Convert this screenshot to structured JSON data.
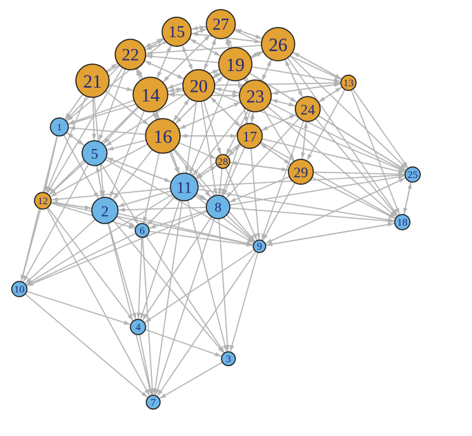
{
  "graph": {
    "colors": {
      "edge": "#b3b3b3",
      "group_a": "#e3a234",
      "group_b": "#6cb5e6",
      "node_outline": "#1a1a1a",
      "label": "#1f2a7a"
    },
    "nodes": [
      {
        "id": "1",
        "group": "b"
      },
      {
        "id": "2",
        "group": "b"
      },
      {
        "id": "3",
        "group": "b"
      },
      {
        "id": "4",
        "group": "b"
      },
      {
        "id": "5",
        "group": "b"
      },
      {
        "id": "6",
        "group": "b"
      },
      {
        "id": "7",
        "group": "b"
      },
      {
        "id": "8",
        "group": "b"
      },
      {
        "id": "9",
        "group": "b"
      },
      {
        "id": "10",
        "group": "b"
      },
      {
        "id": "11",
        "group": "b"
      },
      {
        "id": "12",
        "group": "a"
      },
      {
        "id": "13",
        "group": "a"
      },
      {
        "id": "14",
        "group": "a"
      },
      {
        "id": "15",
        "group": "a"
      },
      {
        "id": "16",
        "group": "a"
      },
      {
        "id": "17",
        "group": "a"
      },
      {
        "id": "18",
        "group": "b"
      },
      {
        "id": "19",
        "group": "a"
      },
      {
        "id": "20",
        "group": "a"
      },
      {
        "id": "21",
        "group": "a"
      },
      {
        "id": "22",
        "group": "a"
      },
      {
        "id": "23",
        "group": "a"
      },
      {
        "id": "24",
        "group": "a"
      },
      {
        "id": "25",
        "group": "b"
      },
      {
        "id": "26",
        "group": "a"
      },
      {
        "id": "27",
        "group": "a"
      },
      {
        "id": "28",
        "group": "a"
      },
      {
        "id": "29",
        "group": "a"
      }
    ],
    "edges": [
      [
        "2",
        "7"
      ],
      [
        "6",
        "7"
      ],
      [
        "4",
        "7"
      ],
      [
        "11",
        "7"
      ],
      [
        "8",
        "7"
      ],
      [
        "9",
        "7"
      ],
      [
        "3",
        "7"
      ],
      [
        "2",
        "3"
      ],
      [
        "6",
        "3"
      ],
      [
        "11",
        "3"
      ],
      [
        "8",
        "3"
      ],
      [
        "9",
        "3"
      ],
      [
        "4",
        "3"
      ],
      [
        "2",
        "4"
      ],
      [
        "6",
        "4"
      ],
      [
        "10",
        "4"
      ],
      [
        "11",
        "4"
      ],
      [
        "8",
        "4"
      ],
      [
        "12",
        "4"
      ],
      [
        "9",
        "4"
      ],
      [
        "2",
        "10"
      ],
      [
        "12",
        "10"
      ],
      [
        "1",
        "10"
      ],
      [
        "5",
        "10"
      ],
      [
        "11",
        "10"
      ],
      [
        "6",
        "10"
      ],
      [
        "8",
        "10"
      ],
      [
        "2",
        "9"
      ],
      [
        "11",
        "9"
      ],
      [
        "8",
        "9"
      ],
      [
        "6",
        "9"
      ],
      [
        "28",
        "9"
      ],
      [
        "29",
        "9"
      ],
      [
        "17",
        "9"
      ],
      [
        "16",
        "9"
      ],
      [
        "24",
        "9"
      ],
      [
        "12",
        "9"
      ],
      [
        "5",
        "9"
      ],
      [
        "1",
        "12"
      ],
      [
        "5",
        "12"
      ],
      [
        "2",
        "12"
      ],
      [
        "21",
        "12"
      ],
      [
        "22",
        "12"
      ],
      [
        "14",
        "12"
      ],
      [
        "16",
        "12"
      ],
      [
        "11",
        "12"
      ],
      [
        "2",
        "6"
      ],
      [
        "11",
        "6"
      ],
      [
        "8",
        "6"
      ],
      [
        "5",
        "6"
      ],
      [
        "16",
        "6"
      ],
      [
        "12",
        "6"
      ],
      [
        "1",
        "5"
      ],
      [
        "21",
        "5"
      ],
      [
        "14",
        "5"
      ],
      [
        "16",
        "5"
      ],
      [
        "22",
        "5"
      ],
      [
        "11",
        "5"
      ],
      [
        "2",
        "5"
      ],
      [
        "20",
        "5"
      ],
      [
        "21",
        "1"
      ],
      [
        "14",
        "1"
      ],
      [
        "22",
        "1"
      ],
      [
        "16",
        "1"
      ],
      [
        "5",
        "1"
      ],
      [
        "20",
        "1"
      ],
      [
        "15",
        "1"
      ],
      [
        "5",
        "2"
      ],
      [
        "11",
        "2"
      ],
      [
        "16",
        "2"
      ],
      [
        "14",
        "2"
      ],
      [
        "1",
        "2"
      ],
      [
        "8",
        "2"
      ],
      [
        "12",
        "2"
      ],
      [
        "21",
        "2"
      ],
      [
        "16",
        "11"
      ],
      [
        "14",
        "11"
      ],
      [
        "20",
        "11"
      ],
      [
        "17",
        "11"
      ],
      [
        "28",
        "11"
      ],
      [
        "8",
        "11"
      ],
      [
        "23",
        "11"
      ],
      [
        "19",
        "11"
      ],
      [
        "5",
        "11"
      ],
      [
        "11",
        "8"
      ],
      [
        "17",
        "8"
      ],
      [
        "28",
        "8"
      ],
      [
        "29",
        "8"
      ],
      [
        "23",
        "8"
      ],
      [
        "16",
        "8"
      ],
      [
        "20",
        "8"
      ],
      [
        "24",
        "8"
      ],
      [
        "21",
        "14"
      ],
      [
        "22",
        "14"
      ],
      [
        "15",
        "14"
      ],
      [
        "20",
        "14"
      ],
      [
        "16",
        "14"
      ],
      [
        "19",
        "14"
      ],
      [
        "27",
        "14"
      ],
      [
        "23",
        "14"
      ],
      [
        "21",
        "22"
      ],
      [
        "15",
        "22"
      ],
      [
        "27",
        "22"
      ],
      [
        "14",
        "22"
      ],
      [
        "20",
        "22"
      ],
      [
        "16",
        "22"
      ],
      [
        "19",
        "22"
      ],
      [
        "26",
        "22"
      ],
      [
        "22",
        "15"
      ],
      [
        "27",
        "15"
      ],
      [
        "19",
        "15"
      ],
      [
        "20",
        "15"
      ],
      [
        "14",
        "15"
      ],
      [
        "26",
        "15"
      ],
      [
        "21",
        "15"
      ],
      [
        "15",
        "27"
      ],
      [
        "26",
        "27"
      ],
      [
        "19",
        "27"
      ],
      [
        "20",
        "27"
      ],
      [
        "22",
        "27"
      ],
      [
        "23",
        "27"
      ],
      [
        "14",
        "27"
      ],
      [
        "27",
        "26"
      ],
      [
        "19",
        "26"
      ],
      [
        "23",
        "26"
      ],
      [
        "13",
        "26"
      ],
      [
        "24",
        "26"
      ],
      [
        "20",
        "26"
      ],
      [
        "15",
        "26"
      ],
      [
        "26",
        "19"
      ],
      [
        "27",
        "19"
      ],
      [
        "20",
        "19"
      ],
      [
        "23",
        "19"
      ],
      [
        "14",
        "19"
      ],
      [
        "15",
        "19"
      ],
      [
        "17",
        "19"
      ],
      [
        "16",
        "19"
      ],
      [
        "19",
        "20"
      ],
      [
        "14",
        "20"
      ],
      [
        "16",
        "20"
      ],
      [
        "23",
        "20"
      ],
      [
        "22",
        "20"
      ],
      [
        "27",
        "20"
      ],
      [
        "17",
        "20"
      ],
      [
        "15",
        "20"
      ],
      [
        "19",
        "23"
      ],
      [
        "20",
        "23"
      ],
      [
        "26",
        "23"
      ],
      [
        "24",
        "23"
      ],
      [
        "17",
        "23"
      ],
      [
        "16",
        "23"
      ],
      [
        "13",
        "23"
      ],
      [
        "14",
        "23"
      ],
      [
        "14",
        "16"
      ],
      [
        "20",
        "16"
      ],
      [
        "21",
        "16"
      ],
      [
        "23",
        "16"
      ],
      [
        "17",
        "16"
      ],
      [
        "22",
        "16"
      ],
      [
        "19",
        "16"
      ],
      [
        "23",
        "17"
      ],
      [
        "16",
        "17"
      ],
      [
        "20",
        "17"
      ],
      [
        "24",
        "17"
      ],
      [
        "19",
        "17"
      ],
      [
        "28",
        "17"
      ],
      [
        "29",
        "17"
      ],
      [
        "26",
        "24"
      ],
      [
        "23",
        "24"
      ],
      [
        "13",
        "24"
      ],
      [
        "17",
        "24"
      ],
      [
        "19",
        "24"
      ],
      [
        "29",
        "24"
      ],
      [
        "26",
        "13"
      ],
      [
        "24",
        "13"
      ],
      [
        "23",
        "13"
      ],
      [
        "19",
        "13"
      ],
      [
        "20",
        "13"
      ],
      [
        "27",
        "13"
      ],
      [
        "17",
        "28"
      ],
      [
        "16",
        "28"
      ],
      [
        "20",
        "28"
      ],
      [
        "23",
        "28"
      ],
      [
        "11",
        "28"
      ],
      [
        "29",
        "28"
      ],
      [
        "17",
        "29"
      ],
      [
        "24",
        "29"
      ],
      [
        "23",
        "29"
      ],
      [
        "28",
        "29"
      ],
      [
        "13",
        "29"
      ],
      [
        "13",
        "25"
      ],
      [
        "24",
        "25"
      ],
      [
        "29",
        "25"
      ],
      [
        "17",
        "25"
      ],
      [
        "23",
        "25"
      ],
      [
        "26",
        "25"
      ],
      [
        "9",
        "25"
      ],
      [
        "8",
        "25"
      ],
      [
        "11",
        "25"
      ],
      [
        "18",
        "25"
      ],
      [
        "20",
        "25"
      ],
      [
        "19",
        "25"
      ],
      [
        "13",
        "18"
      ],
      [
        "24",
        "18"
      ],
      [
        "29",
        "18"
      ],
      [
        "25",
        "18"
      ],
      [
        "9",
        "18"
      ],
      [
        "17",
        "18"
      ],
      [
        "8",
        "18"
      ],
      [
        "23",
        "18"
      ],
      [
        "11",
        "18"
      ],
      [
        "26",
        "18"
      ],
      [
        "18",
        "9"
      ],
      [
        "25",
        "9"
      ],
      [
        "12",
        "7"
      ],
      [
        "10",
        "7"
      ]
    ]
  }
}
